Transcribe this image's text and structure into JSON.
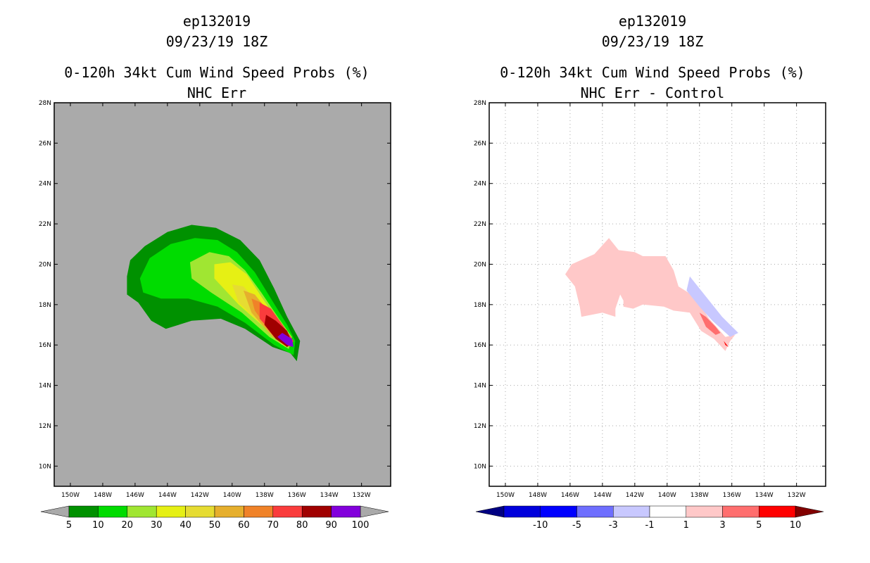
{
  "chart_data": [
    {
      "type": "heatmap",
      "storm_id": "ep132019",
      "datetime": "09/23/19 18Z",
      "title": "0-120h 34kt Cum Wind Speed Probs (%)",
      "subtitle": "NHC Err",
      "xlabel": "",
      "ylabel": "",
      "x_ticks": [
        "150W",
        "148W",
        "146W",
        "144W",
        "142W",
        "140W",
        "138W",
        "136W",
        "134W",
        "132W"
      ],
      "y_ticks": [
        "10N",
        "12N",
        "14N",
        "16N",
        "18N",
        "20N",
        "22N",
        "24N",
        "26N",
        "28N"
      ],
      "x_range_lon": [
        -151,
        -130.2
      ],
      "y_range_lat": [
        9,
        28
      ],
      "grid": false,
      "background_color": "#aaaaaa",
      "colorbar": {
        "labels": [
          "5",
          "10",
          "20",
          "30",
          "40",
          "50",
          "60",
          "70",
          "80",
          "90",
          "100"
        ],
        "colors": [
          "#009100",
          "#00dc00",
          "#a0e632",
          "#e6f014",
          "#e6dc32",
          "#e6af2d",
          "#f08228",
          "#fa3c3c",
          "#a00000",
          "#8200dc"
        ],
        "end_colors": [
          "#aaaaaa",
          "#aaaaaa"
        ]
      },
      "contours": [
        {
          "level": 5,
          "color": "#009100",
          "points": [
            [
              -146.5,
              19.4
            ],
            [
              -146.3,
              20.2
            ],
            [
              -145.4,
              20.9
            ],
            [
              -144,
              21.6
            ],
            [
              -142.5,
              21.95
            ],
            [
              -141,
              21.8
            ],
            [
              -139.5,
              21.2
            ],
            [
              -138.3,
              20.2
            ],
            [
              -137.4,
              18.8
            ],
            [
              -136.6,
              17.4
            ],
            [
              -135.8,
              16.2
            ],
            [
              -136.0,
              15.2
            ],
            [
              -136.4,
              15.6
            ],
            [
              -137.5,
              15.9
            ],
            [
              -139.2,
              16.8
            ],
            [
              -140.7,
              17.3
            ],
            [
              -142.5,
              17.2
            ],
            [
              -144.1,
              16.8
            ],
            [
              -145.0,
              17.2
            ],
            [
              -145.8,
              18.1
            ],
            [
              -146.5,
              18.5
            ]
          ]
        },
        {
          "level": 10,
          "color": "#00dc00",
          "points": [
            [
              -145.7,
              19.3
            ],
            [
              -145.1,
              20.3
            ],
            [
              -143.8,
              21.0
            ],
            [
              -142.3,
              21.3
            ],
            [
              -140.9,
              21.2
            ],
            [
              -139.7,
              20.6
            ],
            [
              -138.6,
              19.6
            ],
            [
              -137.6,
              18.3
            ],
            [
              -136.6,
              17.0
            ],
            [
              -136.1,
              16.2
            ],
            [
              -136.2,
              15.5
            ],
            [
              -137.4,
              16.0
            ],
            [
              -139.2,
              17.1
            ],
            [
              -140.9,
              17.9
            ],
            [
              -142.7,
              18.3
            ],
            [
              -144.4,
              18.3
            ],
            [
              -145.5,
              18.6
            ]
          ]
        },
        {
          "level": 20,
          "color": "#a0e632",
          "points": [
            [
              -142.6,
              20.1
            ],
            [
              -141.4,
              20.6
            ],
            [
              -140.2,
              20.4
            ],
            [
              -139.2,
              19.7
            ],
            [
              -138.2,
              18.6
            ],
            [
              -137.1,
              17.3
            ],
            [
              -136.3,
              16.4
            ],
            [
              -136.5,
              15.8
            ],
            [
              -137.7,
              16.4
            ],
            [
              -139.4,
              17.6
            ],
            [
              -141.3,
              18.6
            ],
            [
              -142.5,
              19.3
            ]
          ]
        },
        {
          "level": 30,
          "color": "#e6f014",
          "points": [
            [
              -141.1,
              20.0
            ],
            [
              -140.1,
              20.1
            ],
            [
              -139.1,
              19.5
            ],
            [
              -138.2,
              18.4
            ],
            [
              -137.1,
              17.1
            ],
            [
              -136.4,
              16.3
            ],
            [
              -136.7,
              15.9
            ],
            [
              -137.9,
              16.8
            ],
            [
              -139.6,
              18.0
            ],
            [
              -141.1,
              19.3
            ]
          ]
        },
        {
          "level": 40,
          "color": "#e6dc32",
          "points": [
            [
              -140.0,
              19.0
            ],
            [
              -139.3,
              18.9
            ],
            [
              -138.5,
              18.2
            ],
            [
              -137.6,
              17.2
            ],
            [
              -136.7,
              16.4
            ],
            [
              -136.9,
              16.0
            ],
            [
              -137.9,
              16.8
            ],
            [
              -139.6,
              18.1
            ]
          ]
        },
        {
          "level": 50,
          "color": "#e6af2d",
          "points": [
            [
              -139.3,
              18.7
            ],
            [
              -138.6,
              18.5
            ],
            [
              -137.8,
              17.7
            ],
            [
              -136.9,
              16.7
            ],
            [
              -136.8,
              16.1
            ],
            [
              -137.5,
              16.4
            ],
            [
              -138.8,
              17.6
            ]
          ]
        },
        {
          "level": 60,
          "color": "#f08228",
          "points": [
            [
              -138.8,
              18.3
            ],
            [
              -138.2,
              18.1
            ],
            [
              -137.5,
              17.4
            ],
            [
              -136.8,
              16.6
            ],
            [
              -137.0,
              16.2
            ],
            [
              -137.8,
              16.8
            ],
            [
              -138.6,
              17.7
            ]
          ]
        },
        {
          "level": 70,
          "color": "#fa3c3c",
          "points": [
            [
              -138.3,
              18.1
            ],
            [
              -137.6,
              17.8
            ],
            [
              -136.8,
              16.9
            ],
            [
              -136.2,
              16.2
            ],
            [
              -136.4,
              15.9
            ],
            [
              -137.3,
              16.4
            ],
            [
              -138.3,
              17.3
            ]
          ]
        },
        {
          "level": 80,
          "color": "#a00000",
          "points": [
            [
              -137.9,
              17.5
            ],
            [
              -137.3,
              17.2
            ],
            [
              -136.6,
              16.7
            ],
            [
              -136.3,
              16.1
            ],
            [
              -136.6,
              15.9
            ],
            [
              -137.3,
              16.3
            ],
            [
              -138.0,
              17.0
            ]
          ]
        },
        {
          "level": 90,
          "color": "#8200dc",
          "points": [
            [
              -136.9,
              16.6
            ],
            [
              -136.3,
              16.3
            ],
            [
              -136.2,
              15.9
            ],
            [
              -136.6,
              16.0
            ],
            [
              -137.2,
              16.4
            ]
          ]
        }
      ]
    },
    {
      "type": "heatmap",
      "storm_id": "ep132019",
      "datetime": "09/23/19 18Z",
      "title": "0-120h 34kt Cum Wind Speed Probs (%)",
      "subtitle": "NHC Err - Control",
      "xlabel": "",
      "ylabel": "",
      "x_ticks": [
        "150W",
        "148W",
        "146W",
        "144W",
        "142W",
        "140W",
        "138W",
        "136W",
        "134W",
        "132W"
      ],
      "y_ticks": [
        "10N",
        "12N",
        "14N",
        "16N",
        "18N",
        "20N",
        "22N",
        "24N",
        "26N",
        "28N"
      ],
      "x_range_lon": [
        -151,
        -130.2
      ],
      "y_range_lat": [
        9,
        28
      ],
      "grid": true,
      "background_color": "#ffffff",
      "colorbar": {
        "labels": [
          "-10",
          "-5",
          "-3",
          "-1",
          "1",
          "3",
          "5",
          "10"
        ],
        "colors": [
          "#0000dc",
          "#0000ff",
          "#6e6eff",
          "#c8c8ff",
          "#ffffff",
          "#ffc8c8",
          "#ff6e6e",
          "#ff0000"
        ],
        "end_colors": [
          "#000082",
          "#820000"
        ]
      },
      "contours": [
        {
          "level": 1,
          "color": "#ffc8c8",
          "points": [
            [
              -146.3,
              19.5
            ],
            [
              -145.9,
              20.0
            ],
            [
              -144.5,
              20.5
            ],
            [
              -143.6,
              21.3
            ],
            [
              -143.0,
              20.7
            ],
            [
              -142.0,
              20.6
            ],
            [
              -141.5,
              20.4
            ],
            [
              -140.1,
              20.4
            ],
            [
              -139.6,
              19.7
            ],
            [
              -139.3,
              18.9
            ],
            [
              -138.3,
              18.4
            ],
            [
              -137.4,
              17.3
            ],
            [
              -136.4,
              16.4
            ],
            [
              -135.8,
              16.5
            ],
            [
              -136.1,
              16.2
            ],
            [
              -136.4,
              15.7
            ],
            [
              -137.1,
              16.3
            ],
            [
              -137.9,
              16.7
            ],
            [
              -138.6,
              17.6
            ],
            [
              -139.6,
              17.7
            ],
            [
              -140.2,
              17.9
            ],
            [
              -141.5,
              18.0
            ],
            [
              -142.1,
              17.8
            ],
            [
              -142.7,
              17.9
            ],
            [
              -142.7,
              18.2
            ],
            [
              -142.9,
              18.5
            ],
            [
              -143.2,
              17.8
            ],
            [
              -143.2,
              17.4
            ],
            [
              -144.0,
              17.6
            ],
            [
              -145.3,
              17.4
            ],
            [
              -145.4,
              17.9
            ],
            [
              -145.7,
              18.9
            ]
          ]
        },
        {
          "level": 3,
          "color": "#ff6e6e",
          "points": [
            [
              -138.0,
              17.6
            ],
            [
              -137.6,
              17.4
            ],
            [
              -137.0,
              16.9
            ],
            [
              -136.7,
              16.6
            ],
            [
              -137.0,
              16.5
            ],
            [
              -137.6,
              16.9
            ]
          ]
        },
        {
          "level": 5,
          "color": "#ff0000",
          "points": [
            [
              -136.5,
              16.2
            ],
            [
              -136.3,
              16.0
            ],
            [
              -136.2,
              15.9
            ],
            [
              -136.4,
              16.0
            ]
          ]
        },
        {
          "level": -1,
          "color": "#c8c8ff",
          "points": [
            [
              -138.6,
              19.4
            ],
            [
              -137.6,
              18.4
            ],
            [
              -136.6,
              17.4
            ],
            [
              -135.6,
              16.6
            ],
            [
              -136.1,
              16.4
            ],
            [
              -137.2,
              17.2
            ],
            [
              -138.0,
              17.9
            ],
            [
              -138.8,
              18.7
            ]
          ]
        }
      ]
    }
  ]
}
